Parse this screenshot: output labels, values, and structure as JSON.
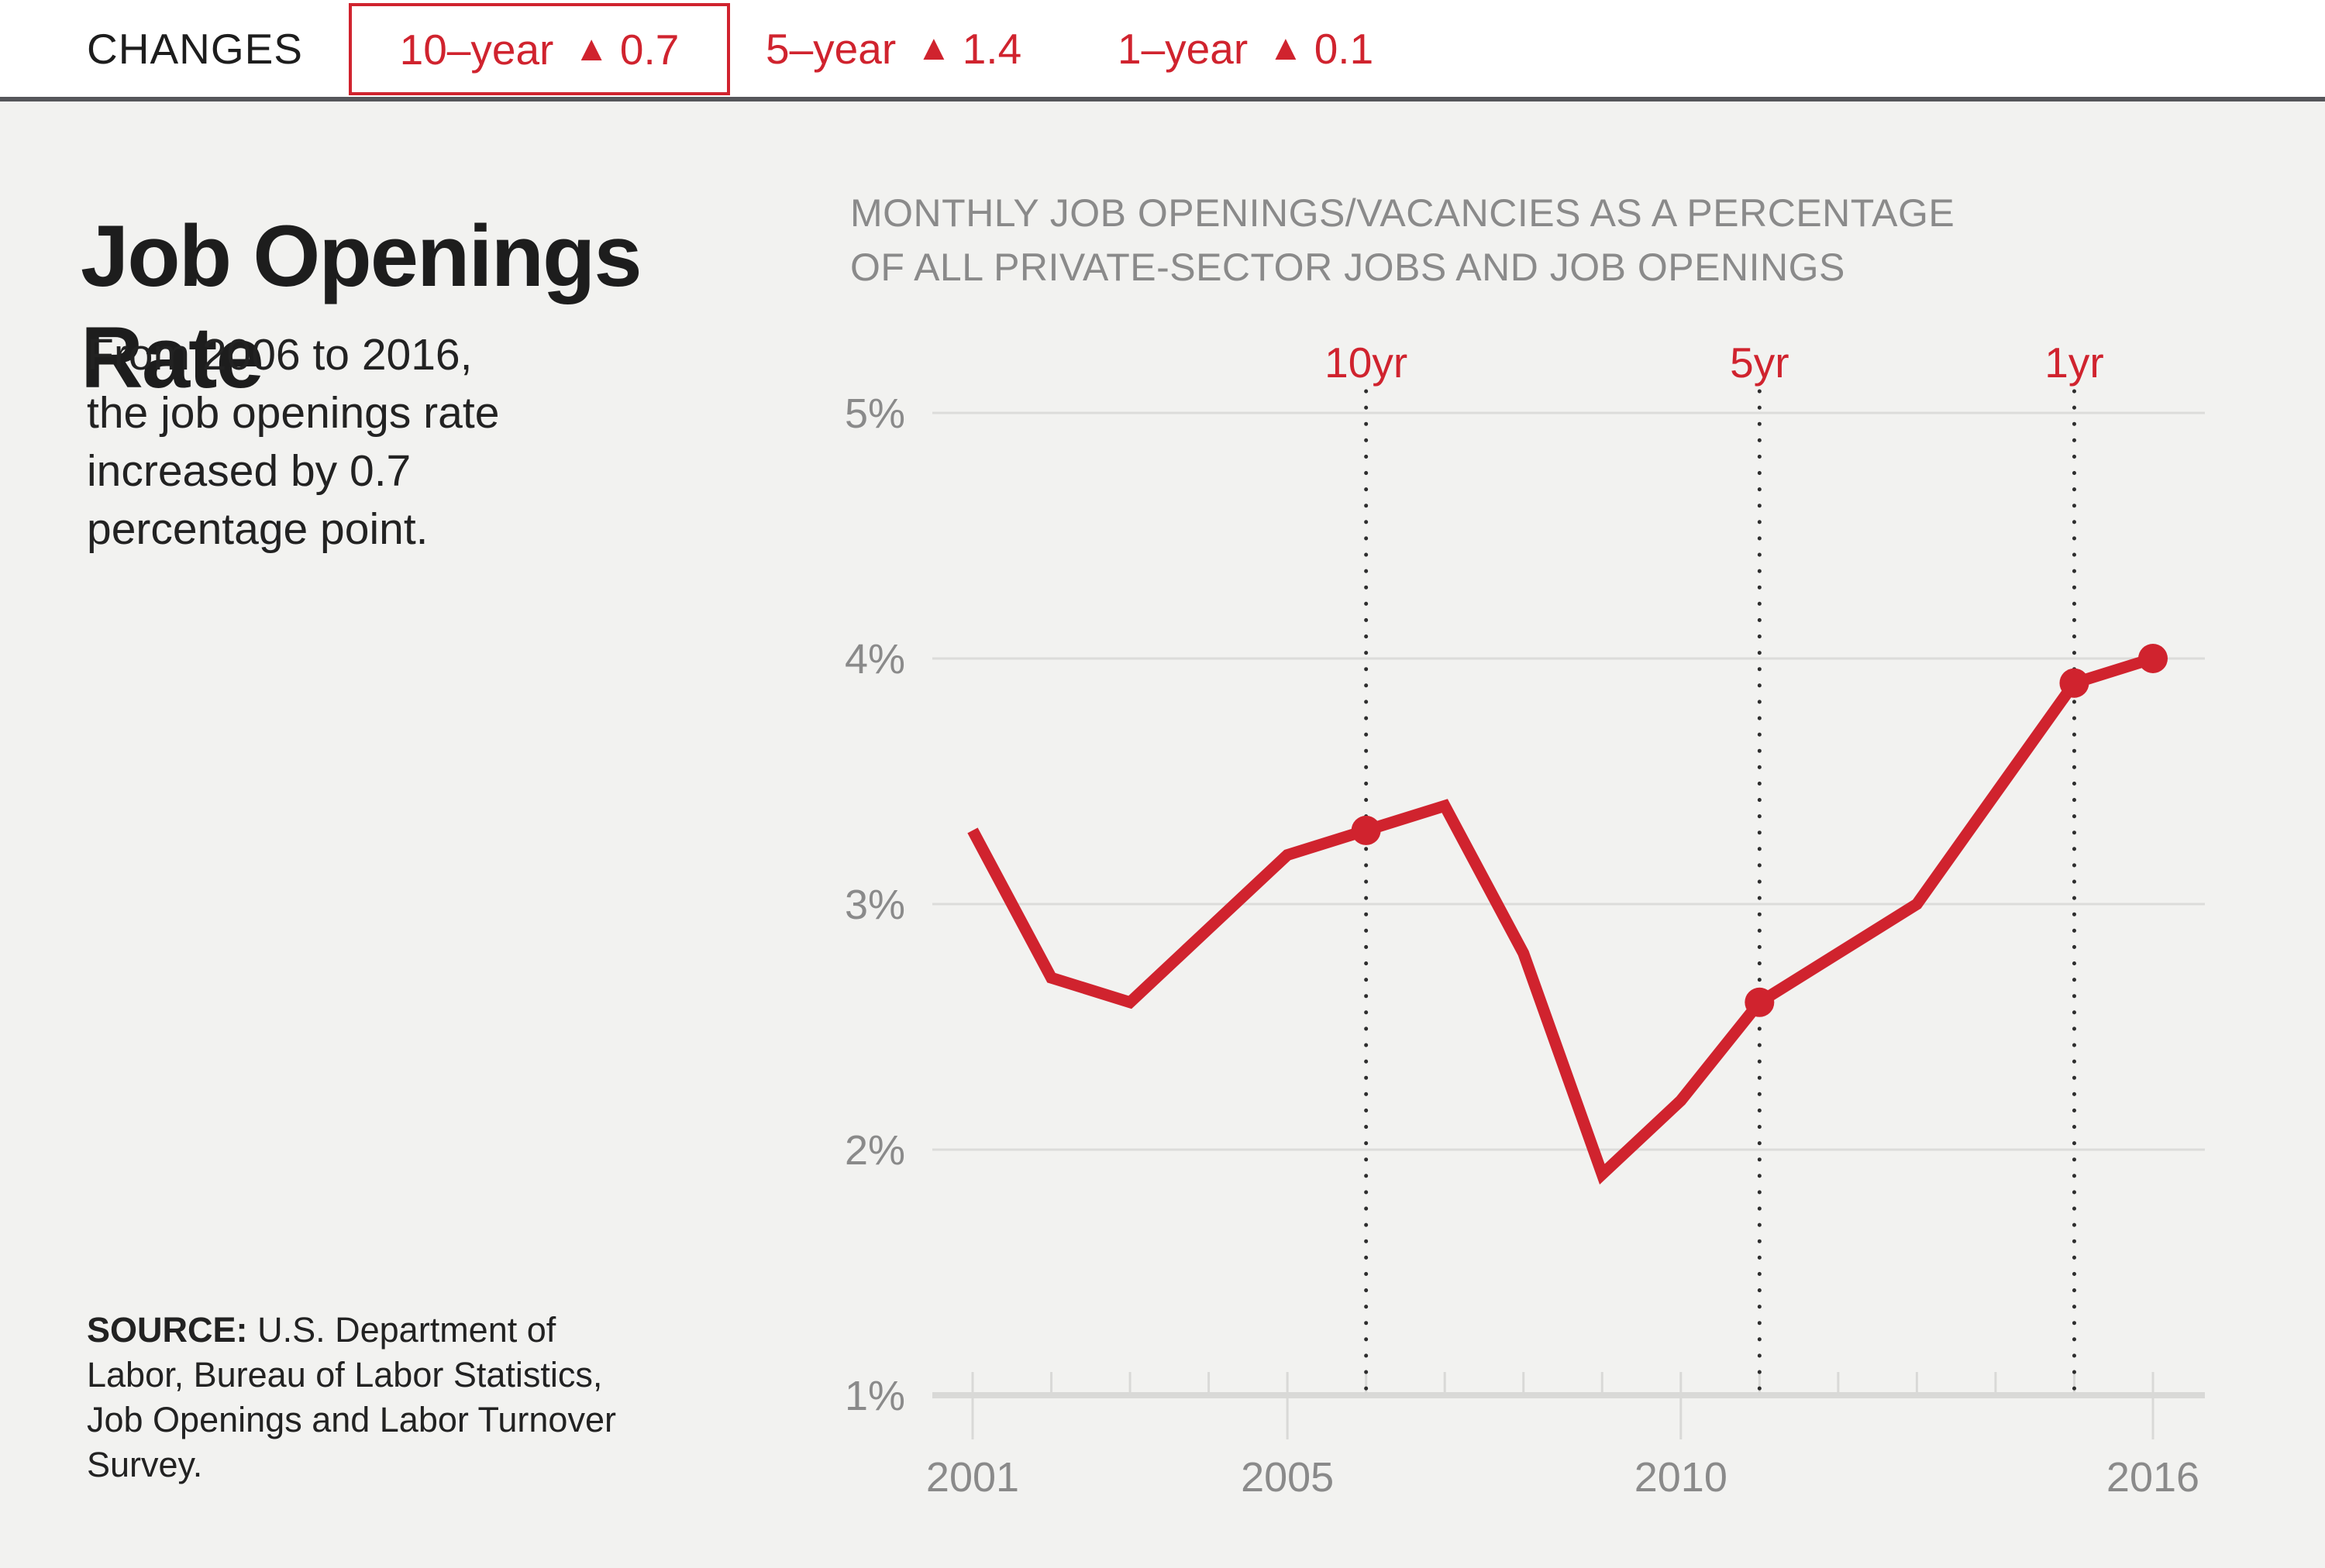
{
  "header": {
    "changes_label": "CHANGES",
    "triangle_icon": "▲",
    "periods": [
      {
        "label": "10–year",
        "direction": "up",
        "value": "0.7",
        "highlighted": true
      },
      {
        "label": "5–year",
        "direction": "up",
        "value": "1.4",
        "highlighted": false
      },
      {
        "label": "1–year",
        "direction": "up",
        "value": "0.1",
        "highlighted": false
      }
    ]
  },
  "sidebar": {
    "title_lines": [
      "Job Openings",
      "Rate"
    ],
    "description_lines": [
      "From 2006 to 2016,",
      "the job openings rate",
      "increased by 0.7",
      "percentage point."
    ],
    "source": {
      "label": "SOURCE:",
      "lines": [
        "U.S. Department of",
        "Labor, Bureau of Labor Statistics,",
        "Job Openings and Labor Turnover",
        "Survey."
      ]
    }
  },
  "chart": {
    "subtitle_lines": [
      "MONTHLY JOB OPENINGS/VACANCIES AS A PERCENTAGE",
      "OF ALL PRIVATE-SECTOR JOBS AND JOB OPENINGS"
    ]
  },
  "chart_data": {
    "type": "line",
    "title": "MONTHLY JOB OPENINGS/VACANCIES AS A PERCENTAGE OF ALL PRIVATE-SECTOR JOBS AND JOB OPENINGS",
    "x": [
      2001,
      2002,
      2003,
      2004,
      2005,
      2006,
      2007,
      2008,
      2009,
      2010,
      2011,
      2012,
      2013,
      2014,
      2015,
      2016
    ],
    "values": [
      3.3,
      2.7,
      2.6,
      2.9,
      3.2,
      3.3,
      3.4,
      2.8,
      1.9,
      2.2,
      2.6,
      2.8,
      3.0,
      3.45,
      3.9,
      4.0
    ],
    "marker_years": [
      2006,
      2011,
      2015,
      2016
    ],
    "vertical_marker_lines": [
      {
        "label": "10yr",
        "year": 2006
      },
      {
        "label": "5yr",
        "year": 2011
      },
      {
        "label": "1yr",
        "year": 2015
      }
    ],
    "xlim": [
      2001,
      2016
    ],
    "ylim": [
      1,
      5
    ],
    "x_tick_years": [
      2001,
      2002,
      2003,
      2004,
      2005,
      2006,
      2007,
      2008,
      2009,
      2010,
      2011,
      2012,
      2013,
      2014,
      2015,
      2016
    ],
    "x_tick_labels": [
      2001,
      2005,
      2010,
      2016
    ],
    "y_tick_values": [
      5,
      4,
      3,
      2,
      1
    ],
    "y_tick_suffix": "%",
    "grid": true,
    "legend_position": "none",
    "line_color": "#d0232e"
  },
  "colors": {
    "accent_red": "#d0232e",
    "page_background": "#f2f2f0",
    "topbar_background": "#ffffff",
    "divider": "#55565a",
    "title_text": "#1d1d1d",
    "body_text": "#222222",
    "muted_text": "#8a8a8a",
    "gridline": "#dcdcda",
    "axis_line": "#d9d9d7",
    "dotted_line": "#2e2e2e"
  }
}
